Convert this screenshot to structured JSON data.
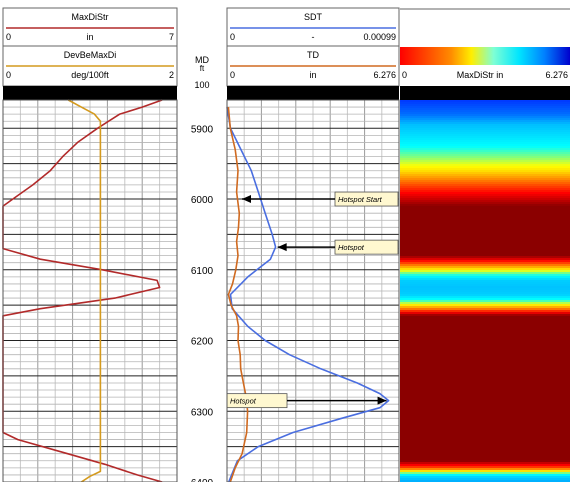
{
  "track1": {
    "curves": [
      {
        "name": "MaxDiStr",
        "unit": "in",
        "min": "0",
        "max": "7",
        "color": "#b22a2a"
      },
      {
        "name": "DevBeMaxDi",
        "unit": "deg/100ft",
        "min": "0",
        "max": "2",
        "color": "#d49a1e"
      }
    ]
  },
  "depth_track": {
    "label": "MD",
    "unit": "ft",
    "scale": "100"
  },
  "track2": {
    "curves": [
      {
        "name": "SDT",
        "unit": "-",
        "min": "0",
        "max": "0.00099",
        "color": "#4a6ee0"
      },
      {
        "name": "TD",
        "unit": "in",
        "min": "0",
        "max": "6.276",
        "color": "#d06a20"
      }
    ]
  },
  "image_track": {
    "name": "MaxDiStr in",
    "min": "0",
    "max": "6.276"
  },
  "annotations": [
    {
      "text": "Hotspot Start",
      "depth": 6000
    },
    {
      "text": "Hotspot",
      "depth": 6068
    },
    {
      "text": "Hotspot",
      "depth": 6285
    }
  ],
  "chart_data": {
    "type": "line",
    "y_axis": {
      "label": "MD",
      "unit": "ft",
      "ticks": [
        5900,
        6000,
        6100,
        6200,
        6300,
        6400
      ],
      "range": [
        5860,
        6400
      ],
      "inverted": true
    },
    "grid": true,
    "series": [
      {
        "name": "MaxDiStr",
        "unit": "in",
        "range": [
          0,
          7
        ],
        "points": [
          [
            5860,
            6.4
          ],
          [
            5870,
            5.6
          ],
          [
            5880,
            4.7
          ],
          [
            5900,
            3.8
          ],
          [
            5920,
            3.0
          ],
          [
            5940,
            2.4
          ],
          [
            5960,
            1.9
          ],
          [
            5980,
            1.2
          ],
          [
            6000,
            0.4
          ],
          [
            6010,
            0.0
          ],
          [
            6070,
            0.0
          ],
          [
            6085,
            1.5
          ],
          [
            6100,
            4.0
          ],
          [
            6115,
            6.2
          ],
          [
            6125,
            6.3
          ],
          [
            6140,
            4.5
          ],
          [
            6155,
            1.5
          ],
          [
            6165,
            0.0
          ],
          [
            6330,
            0.0
          ],
          [
            6340,
            0.6
          ],
          [
            6360,
            2.6
          ],
          [
            6375,
            4.1
          ],
          [
            6390,
            5.4
          ],
          [
            6400,
            6.4
          ]
        ]
      },
      {
        "name": "DevBeMaxDi",
        "unit": "deg/100ft",
        "range": [
          0,
          2
        ],
        "points": [
          [
            5860,
            0.75
          ],
          [
            5870,
            0.9
          ],
          [
            5880,
            1.05
          ],
          [
            5890,
            1.12
          ],
          [
            5900,
            1.12
          ],
          [
            6385,
            1.12
          ],
          [
            6392,
            1.0
          ],
          [
            6400,
            0.9
          ]
        ]
      },
      {
        "name": "SDT",
        "unit": "-",
        "range": [
          0,
          0.00099
        ],
        "points": [
          [
            5870,
            0.0
          ],
          [
            5900,
            2e-05
          ],
          [
            5930,
            8e-05
          ],
          [
            5960,
            0.00014
          ],
          [
            5990,
            0.00018
          ],
          [
            6020,
            0.00022
          ],
          [
            6050,
            0.00026
          ],
          [
            6068,
            0.00028
          ],
          [
            6085,
            0.00025
          ],
          [
            6110,
            0.00012
          ],
          [
            6135,
            2e-05
          ],
          [
            6155,
            3e-05
          ],
          [
            6180,
            0.00012
          ],
          [
            6200,
            0.00022
          ],
          [
            6220,
            0.00036
          ],
          [
            6240,
            0.00054
          ],
          [
            6260,
            0.00075
          ],
          [
            6275,
            0.00088
          ],
          [
            6285,
            0.00093
          ],
          [
            6295,
            0.00088
          ],
          [
            6310,
            0.00066
          ],
          [
            6330,
            0.00038
          ],
          [
            6350,
            0.00018
          ],
          [
            6370,
            6e-05
          ],
          [
            6400,
            1e-05
          ]
        ]
      },
      {
        "name": "TD",
        "unit": "in",
        "range": [
          0,
          6.276
        ],
        "points": [
          [
            5870,
            0.05
          ],
          [
            5900,
            0.12
          ],
          [
            5930,
            0.3
          ],
          [
            5960,
            0.4
          ],
          [
            5990,
            0.35
          ],
          [
            6020,
            0.45
          ],
          [
            6040,
            0.42
          ],
          [
            6060,
            0.35
          ],
          [
            6080,
            0.4
          ],
          [
            6100,
            0.32
          ],
          [
            6120,
            0.2
          ],
          [
            6135,
            0.05
          ],
          [
            6150,
            0.15
          ],
          [
            6165,
            0.35
          ],
          [
            6180,
            0.42
          ],
          [
            6200,
            0.4
          ],
          [
            6220,
            0.48
          ],
          [
            6240,
            0.5
          ],
          [
            6260,
            0.6
          ],
          [
            6280,
            0.7
          ],
          [
            6300,
            0.75
          ],
          [
            6330,
            0.72
          ],
          [
            6360,
            0.55
          ],
          [
            6380,
            0.3
          ],
          [
            6400,
            0.12
          ]
        ]
      }
    ],
    "image_track": {
      "name": "MaxDiStr in",
      "range": [
        0,
        6.276
      ],
      "colormap": [
        "#0000ff",
        "#00bfff",
        "#00ffff",
        "#ffff00",
        "#ff8000",
        "#ff0000",
        "#8b0000"
      ],
      "profile": [
        [
          5860,
          0.3
        ],
        [
          5880,
          0.6
        ],
        [
          5900,
          1.2
        ],
        [
          5920,
          1.9
        ],
        [
          5940,
          2.6
        ],
        [
          5960,
          3.4
        ],
        [
          5980,
          4.6
        ],
        [
          6000,
          5.7
        ],
        [
          6010,
          6.276
        ],
        [
          6080,
          6.276
        ],
        [
          6095,
          4.0
        ],
        [
          6105,
          2.5
        ],
        [
          6115,
          1.3
        ],
        [
          6125,
          1.1
        ],
        [
          6135,
          1.3
        ],
        [
          6145,
          2.5
        ],
        [
          6155,
          4.2
        ],
        [
          6165,
          6.276
        ],
        [
          6370,
          6.276
        ],
        [
          6380,
          4.6
        ],
        [
          6388,
          2.4
        ],
        [
          6394,
          1.2
        ],
        [
          6400,
          0.9
        ]
      ]
    }
  }
}
